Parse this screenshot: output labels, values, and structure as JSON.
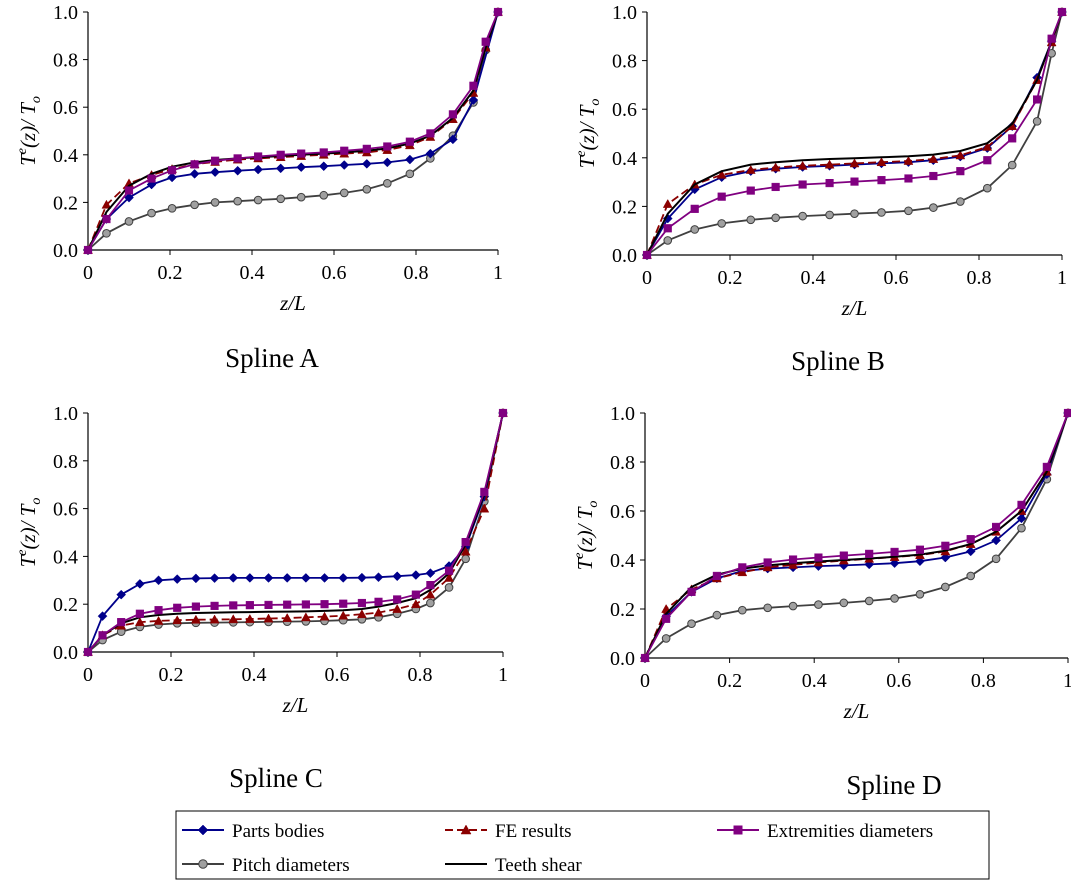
{
  "legend": {
    "items": [
      {
        "label": "Parts bodies",
        "color": "#00008b",
        "marker": "diamond",
        "dash": false
      },
      {
        "label": "FE results",
        "color": "#8b0000",
        "marker": "triangle",
        "dash": true
      },
      {
        "label": "Extremities diameters",
        "color": "#800080",
        "marker": "square",
        "dash": false
      },
      {
        "label": "Pitch diameters",
        "color": "#404040",
        "marker": "circle",
        "dash": false
      },
      {
        "label": "Teeth shear",
        "color": "#000000",
        "marker": "none",
        "dash": false
      }
    ]
  },
  "chart_data": [
    {
      "type": "line",
      "caption": "Spline A",
      "xlabel": "z/L",
      "ylabel_main": "T",
      "ylabel_sup": "e",
      "ylabel_rest": "(z)/ T",
      "ylabel_sub": "o",
      "xlim": [
        0,
        1
      ],
      "ylim": [
        0,
        1.0
      ],
      "xticks": [
        "0",
        "0.2",
        "0.4",
        "0.6",
        "0.8",
        "1"
      ],
      "yticks": [
        "0.0",
        "0.2",
        "0.4",
        "0.6",
        "0.8",
        "1.0"
      ],
      "series": [
        {
          "name": "Parts bodies",
          "x": [
            0,
            0.045,
            0.1,
            0.155,
            0.205,
            0.26,
            0.31,
            0.365,
            0.415,
            0.47,
            0.52,
            0.575,
            0.625,
            0.68,
            0.73,
            0.785,
            0.835,
            0.89,
            0.94,
            1.0
          ],
          "y": [
            0,
            0.13,
            0.22,
            0.275,
            0.305,
            0.32,
            0.327,
            0.333,
            0.338,
            0.343,
            0.348,
            0.352,
            0.357,
            0.362,
            0.368,
            0.38,
            0.405,
            0.465,
            0.63,
            1.0
          ]
        },
        {
          "name": "FE results",
          "x": [
            0,
            0.045,
            0.1,
            0.155,
            0.205,
            0.26,
            0.31,
            0.365,
            0.415,
            0.47,
            0.52,
            0.575,
            0.625,
            0.68,
            0.73,
            0.785,
            0.835,
            0.89,
            0.94,
            0.97,
            1.0
          ],
          "y": [
            0,
            0.19,
            0.28,
            0.315,
            0.34,
            0.36,
            0.37,
            0.38,
            0.385,
            0.39,
            0.395,
            0.4,
            0.405,
            0.41,
            0.42,
            0.44,
            0.475,
            0.55,
            0.66,
            0.85,
            1.0
          ]
        },
        {
          "name": "Extremities diameters",
          "x": [
            0,
            0.045,
            0.1,
            0.155,
            0.205,
            0.26,
            0.31,
            0.365,
            0.415,
            0.47,
            0.52,
            0.575,
            0.625,
            0.68,
            0.73,
            0.785,
            0.835,
            0.89,
            0.94,
            0.97,
            1.0
          ],
          "y": [
            0,
            0.13,
            0.25,
            0.3,
            0.335,
            0.36,
            0.375,
            0.385,
            0.393,
            0.4,
            0.405,
            0.41,
            0.417,
            0.425,
            0.435,
            0.455,
            0.49,
            0.57,
            0.69,
            0.875,
            1.0
          ]
        },
        {
          "name": "Pitch diameters",
          "x": [
            0,
            0.045,
            0.1,
            0.155,
            0.205,
            0.26,
            0.31,
            0.365,
            0.415,
            0.47,
            0.52,
            0.575,
            0.625,
            0.68,
            0.73,
            0.785,
            0.835,
            0.89,
            0.94,
            0.97,
            1.0
          ],
          "y": [
            0,
            0.07,
            0.12,
            0.155,
            0.175,
            0.19,
            0.2,
            0.205,
            0.21,
            0.215,
            0.222,
            0.23,
            0.24,
            0.255,
            0.28,
            0.32,
            0.385,
            0.48,
            0.62,
            0.84,
            1.0
          ]
        },
        {
          "name": "Teeth shear",
          "x": [
            0,
            0.045,
            0.1,
            0.155,
            0.205,
            0.26,
            0.31,
            0.365,
            0.415,
            0.47,
            0.52,
            0.575,
            0.625,
            0.68,
            0.73,
            0.785,
            0.835,
            0.89,
            0.94,
            0.97,
            1.0
          ],
          "y": [
            0,
            0.16,
            0.27,
            0.32,
            0.35,
            0.368,
            0.378,
            0.385,
            0.39,
            0.395,
            0.4,
            0.405,
            0.41,
            0.417,
            0.427,
            0.447,
            0.48,
            0.555,
            0.67,
            0.85,
            1.0
          ]
        }
      ]
    },
    {
      "type": "line",
      "caption": "Spline B",
      "xlabel": "z/L",
      "ylabel_main": "T",
      "ylabel_sup": "e",
      "ylabel_rest": "(z)/ T",
      "ylabel_sub": "o",
      "xlim": [
        0,
        1
      ],
      "ylim": [
        0,
        1.0
      ],
      "xticks": [
        "0",
        "0.2",
        "0.4",
        "0.6",
        "0.8",
        "1"
      ],
      "yticks": [
        "0.0",
        "0.2",
        "0.4",
        "0.6",
        "0.8",
        "1.0"
      ],
      "series": [
        {
          "name": "Parts bodies",
          "x": [
            0,
            0.05,
            0.115,
            0.18,
            0.25,
            0.31,
            0.375,
            0.44,
            0.5,
            0.565,
            0.63,
            0.69,
            0.755,
            0.82,
            0.88,
            0.94,
            0.975,
            1.0
          ],
          "y": [
            0,
            0.15,
            0.27,
            0.32,
            0.345,
            0.355,
            0.362,
            0.367,
            0.372,
            0.377,
            0.382,
            0.39,
            0.405,
            0.44,
            0.53,
            0.73,
            0.88,
            1.0
          ]
        },
        {
          "name": "FE results",
          "x": [
            0,
            0.05,
            0.115,
            0.18,
            0.25,
            0.31,
            0.375,
            0.44,
            0.5,
            0.565,
            0.63,
            0.69,
            0.755,
            0.82,
            0.88,
            0.94,
            0.975,
            1.0
          ],
          "y": [
            0,
            0.21,
            0.29,
            0.33,
            0.35,
            0.36,
            0.367,
            0.372,
            0.377,
            0.382,
            0.387,
            0.395,
            0.41,
            0.445,
            0.53,
            0.72,
            0.875,
            1.0
          ]
        },
        {
          "name": "Extremities diameters",
          "x": [
            0,
            0.05,
            0.115,
            0.18,
            0.25,
            0.31,
            0.375,
            0.44,
            0.5,
            0.565,
            0.63,
            0.69,
            0.755,
            0.82,
            0.88,
            0.94,
            0.975,
            1.0
          ],
          "y": [
            0,
            0.11,
            0.19,
            0.24,
            0.265,
            0.28,
            0.29,
            0.296,
            0.302,
            0.308,
            0.315,
            0.325,
            0.345,
            0.39,
            0.48,
            0.64,
            0.89,
            1.0
          ]
        },
        {
          "name": "Pitch diameters",
          "x": [
            0,
            0.05,
            0.115,
            0.18,
            0.25,
            0.31,
            0.375,
            0.44,
            0.5,
            0.565,
            0.63,
            0.69,
            0.755,
            0.82,
            0.88,
            0.94,
            0.975,
            1.0
          ],
          "y": [
            0,
            0.06,
            0.105,
            0.13,
            0.145,
            0.153,
            0.16,
            0.165,
            0.17,
            0.175,
            0.182,
            0.195,
            0.22,
            0.275,
            0.37,
            0.55,
            0.83,
            1.0
          ]
        },
        {
          "name": "Teeth shear",
          "x": [
            0,
            0.05,
            0.115,
            0.18,
            0.25,
            0.31,
            0.375,
            0.44,
            0.5,
            0.565,
            0.63,
            0.69,
            0.755,
            0.82,
            0.88,
            0.94,
            0.975,
            1.0
          ],
          "y": [
            0,
            0.17,
            0.29,
            0.345,
            0.372,
            0.382,
            0.39,
            0.395,
            0.398,
            0.402,
            0.406,
            0.413,
            0.428,
            0.46,
            0.54,
            0.72,
            0.88,
            1.0
          ]
        }
      ]
    },
    {
      "type": "line",
      "caption": "Spline C",
      "xlabel": "z/L",
      "ylabel_main": "T",
      "ylabel_sup": "e",
      "ylabel_rest": "(z)/ T",
      "ylabel_sub": "o",
      "xlim": [
        0,
        1
      ],
      "ylim": [
        0,
        1.0
      ],
      "xticks": [
        "0",
        "0.2",
        "0.4",
        "0.6",
        "0.8",
        "1"
      ],
      "yticks": [
        "0.0",
        "0.2",
        "0.4",
        "0.6",
        "0.8",
        "1.0"
      ],
      "series": [
        {
          "name": "Parts bodies",
          "x": [
            0,
            0.035,
            0.08,
            0.125,
            0.17,
            0.215,
            0.26,
            0.305,
            0.35,
            0.39,
            0.435,
            0.48,
            0.525,
            0.57,
            0.615,
            0.66,
            0.7,
            0.745,
            0.79,
            0.825,
            0.87,
            0.91,
            0.955,
            1.0
          ],
          "y": [
            0,
            0.15,
            0.24,
            0.285,
            0.3,
            0.305,
            0.308,
            0.309,
            0.31,
            0.31,
            0.31,
            0.31,
            0.31,
            0.31,
            0.31,
            0.311,
            0.313,
            0.317,
            0.322,
            0.33,
            0.36,
            0.44,
            0.65,
            1.0
          ]
        },
        {
          "name": "FE results",
          "x": [
            0,
            0.035,
            0.08,
            0.125,
            0.17,
            0.215,
            0.26,
            0.305,
            0.35,
            0.39,
            0.435,
            0.48,
            0.525,
            0.57,
            0.615,
            0.66,
            0.7,
            0.745,
            0.79,
            0.825,
            0.87,
            0.91,
            0.955,
            1.0
          ],
          "y": [
            0,
            0.07,
            0.11,
            0.125,
            0.13,
            0.133,
            0.135,
            0.136,
            0.137,
            0.138,
            0.14,
            0.142,
            0.145,
            0.148,
            0.152,
            0.158,
            0.165,
            0.18,
            0.2,
            0.24,
            0.31,
            0.42,
            0.6,
            1.0
          ]
        },
        {
          "name": "Extremities diameters",
          "x": [
            0,
            0.035,
            0.08,
            0.125,
            0.17,
            0.215,
            0.26,
            0.305,
            0.35,
            0.39,
            0.435,
            0.48,
            0.525,
            0.57,
            0.615,
            0.66,
            0.7,
            0.745,
            0.79,
            0.825,
            0.87,
            0.91,
            0.955,
            1.0
          ],
          "y": [
            0,
            0.07,
            0.125,
            0.16,
            0.175,
            0.185,
            0.19,
            0.193,
            0.195,
            0.196,
            0.197,
            0.198,
            0.199,
            0.2,
            0.202,
            0.205,
            0.21,
            0.22,
            0.24,
            0.28,
            0.34,
            0.46,
            0.67,
            1.0
          ]
        },
        {
          "name": "Pitch diameters",
          "x": [
            0,
            0.035,
            0.08,
            0.125,
            0.17,
            0.215,
            0.26,
            0.305,
            0.35,
            0.39,
            0.435,
            0.48,
            0.525,
            0.57,
            0.615,
            0.66,
            0.7,
            0.745,
            0.79,
            0.825,
            0.87,
            0.91,
            0.955,
            1.0
          ],
          "y": [
            0,
            0.05,
            0.085,
            0.105,
            0.115,
            0.12,
            0.122,
            0.123,
            0.124,
            0.125,
            0.126,
            0.127,
            0.128,
            0.13,
            0.133,
            0.137,
            0.145,
            0.16,
            0.18,
            0.205,
            0.27,
            0.39,
            0.63,
            1.0
          ]
        },
        {
          "name": "Teeth shear",
          "x": [
            0,
            0.035,
            0.08,
            0.125,
            0.17,
            0.215,
            0.26,
            0.305,
            0.35,
            0.39,
            0.435,
            0.48,
            0.525,
            0.57,
            0.615,
            0.66,
            0.7,
            0.745,
            0.79,
            0.825,
            0.87,
            0.91,
            0.955,
            1.0
          ],
          "y": [
            0,
            0.07,
            0.12,
            0.145,
            0.155,
            0.16,
            0.163,
            0.165,
            0.166,
            0.167,
            0.168,
            0.169,
            0.17,
            0.172,
            0.175,
            0.18,
            0.19,
            0.205,
            0.225,
            0.26,
            0.33,
            0.45,
            0.66,
            1.0
          ]
        }
      ]
    },
    {
      "type": "line",
      "caption": "Spline D",
      "xlabel": "z/L",
      "ylabel_main": "T",
      "ylabel_sup": "e",
      "ylabel_rest": "(z)/ T",
      "ylabel_sub": "o",
      "xlim": [
        0,
        1
      ],
      "ylim": [
        0,
        1.0
      ],
      "xticks": [
        "0",
        "0.2",
        "0.4",
        "0.6",
        "0.8",
        "1"
      ],
      "yticks": [
        "0.0",
        "0.2",
        "0.4",
        "0.6",
        "0.8",
        "1.0"
      ],
      "series": [
        {
          "name": "Parts bodies",
          "x": [
            0,
            0.05,
            0.11,
            0.17,
            0.23,
            0.29,
            0.35,
            0.41,
            0.47,
            0.53,
            0.59,
            0.65,
            0.71,
            0.77,
            0.83,
            0.89,
            0.95,
            1.0
          ],
          "y": [
            0,
            0.17,
            0.27,
            0.325,
            0.355,
            0.365,
            0.37,
            0.375,
            0.378,
            0.382,
            0.387,
            0.395,
            0.41,
            0.435,
            0.48,
            0.57,
            0.75,
            1.0
          ]
        },
        {
          "name": "FE results",
          "x": [
            0,
            0.05,
            0.11,
            0.17,
            0.23,
            0.29,
            0.35,
            0.41,
            0.47,
            0.53,
            0.59,
            0.65,
            0.71,
            0.77,
            0.83,
            0.89,
            0.95,
            1.0
          ],
          "y": [
            0,
            0.2,
            0.28,
            0.325,
            0.35,
            0.37,
            0.38,
            0.39,
            0.398,
            0.405,
            0.412,
            0.42,
            0.435,
            0.465,
            0.515,
            0.6,
            0.76,
            1.0
          ]
        },
        {
          "name": "Extremities diameters",
          "x": [
            0,
            0.05,
            0.11,
            0.17,
            0.23,
            0.29,
            0.35,
            0.41,
            0.47,
            0.53,
            0.59,
            0.65,
            0.71,
            0.77,
            0.83,
            0.89,
            0.95,
            1.0
          ],
          "y": [
            0,
            0.16,
            0.27,
            0.335,
            0.37,
            0.39,
            0.402,
            0.41,
            0.418,
            0.425,
            0.433,
            0.442,
            0.458,
            0.485,
            0.535,
            0.625,
            0.78,
            1.0
          ]
        },
        {
          "name": "Pitch diameters",
          "x": [
            0,
            0.05,
            0.11,
            0.17,
            0.23,
            0.29,
            0.35,
            0.41,
            0.47,
            0.53,
            0.59,
            0.65,
            0.71,
            0.77,
            0.83,
            0.89,
            0.95,
            1.0
          ],
          "y": [
            0,
            0.08,
            0.14,
            0.175,
            0.195,
            0.205,
            0.212,
            0.218,
            0.225,
            0.233,
            0.243,
            0.26,
            0.29,
            0.335,
            0.405,
            0.53,
            0.73,
            1.0
          ]
        },
        {
          "name": "Teeth shear",
          "x": [
            0,
            0.05,
            0.11,
            0.17,
            0.23,
            0.29,
            0.35,
            0.41,
            0.47,
            0.53,
            0.59,
            0.65,
            0.71,
            0.77,
            0.83,
            0.89,
            0.95,
            1.0
          ],
          "y": [
            0,
            0.18,
            0.29,
            0.34,
            0.365,
            0.378,
            0.387,
            0.394,
            0.4,
            0.406,
            0.413,
            0.422,
            0.438,
            0.465,
            0.515,
            0.6,
            0.76,
            1.0
          ]
        }
      ]
    }
  ]
}
